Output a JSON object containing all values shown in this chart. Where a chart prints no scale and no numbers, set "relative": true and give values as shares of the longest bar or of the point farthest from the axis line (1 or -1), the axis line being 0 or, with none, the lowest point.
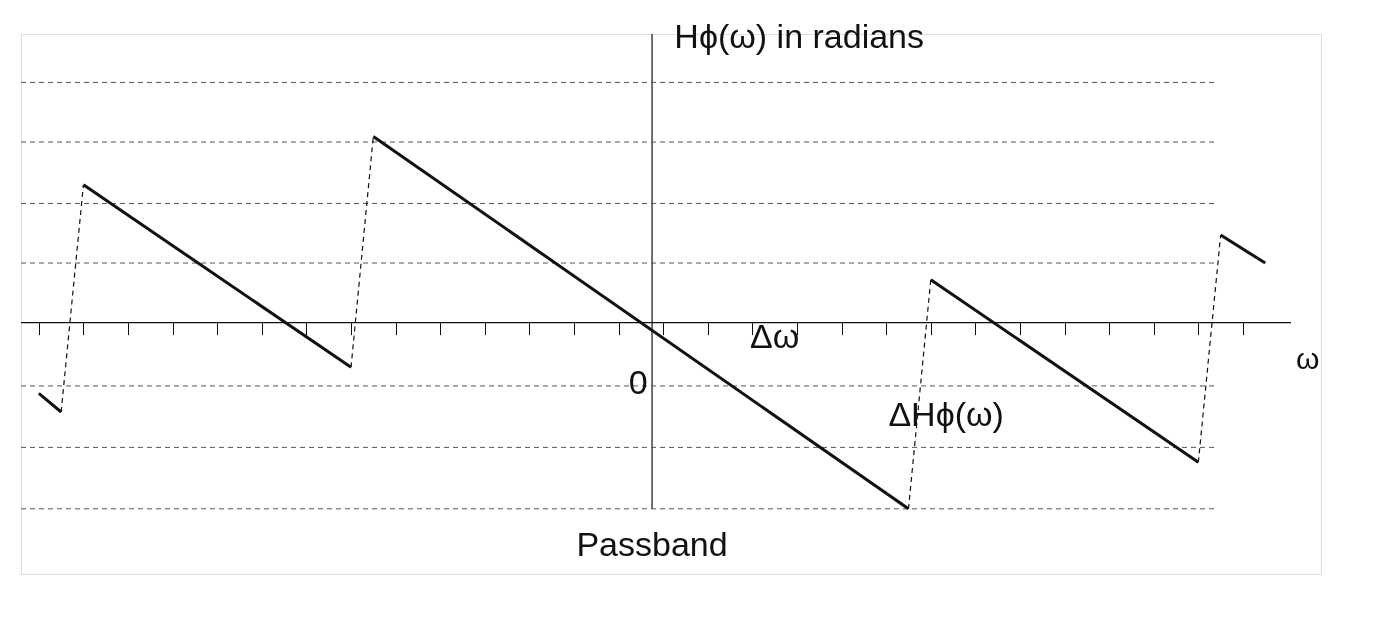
{
  "chart_data": {
    "type": "line",
    "relative": true,
    "xlabel": "ω",
    "ylabel": "Hϕ(ω) in radians",
    "categories": [
      null,
      null,
      null,
      null,
      null,
      null,
      null,
      null,
      null,
      null,
      null,
      null,
      null,
      null,
      null,
      null,
      null,
      null,
      null,
      null,
      null,
      null,
      null,
      null,
      null,
      null,
      null,
      null,
      null,
      null,
      null,
      null,
      null,
      null,
      null,
      null,
      null,
      null,
      null,
      null,
      null,
      null,
      null,
      null,
      null,
      null,
      null,
      null,
      null,
      null,
      null,
      null,
      null,
      null,
      null,
      null
    ],
    "series": [
      {
        "color": "#111111",
        "line_style": "solid",
        "values": [
          -0.38,
          -0.48,
          null,
          null,
          null,
          null,
          null,
          null,
          null,
          null,
          null,
          null,
          null,
          null,
          null,
          null,
          null,
          null,
          null,
          null,
          null,
          null,
          null,
          null,
          null,
          null,
          null,
          null,
          null,
          null,
          null,
          null,
          null,
          null,
          null,
          null,
          null,
          null,
          null,
          null,
          null,
          null,
          null,
          null,
          null,
          null,
          null,
          null,
          null,
          null,
          null,
          null,
          null,
          null,
          null,
          null
        ]
      },
      {
        "color": "#111111",
        "line_style": "dashed",
        "values": [
          null,
          -0.48,
          0.74,
          null,
          null,
          null,
          null,
          null,
          null,
          null,
          null,
          null,
          null,
          null,
          null,
          null,
          null,
          null,
          null,
          null,
          null,
          null,
          null,
          null,
          null,
          null,
          null,
          null,
          null,
          null,
          null,
          null,
          null,
          null,
          null,
          null,
          null,
          null,
          null,
          null,
          null,
          null,
          null,
          null,
          null,
          null,
          null,
          null,
          null,
          null,
          null,
          null,
          null,
          null,
          null,
          null
        ]
      },
      {
        "color": "#111111",
        "line_style": "solid",
        "values": [
          null,
          null,
          0.74,
          null,
          null,
          null,
          null,
          null,
          null,
          null,
          null,
          null,
          null,
          null,
          -0.24,
          null,
          null,
          null,
          null,
          null,
          null,
          null,
          null,
          null,
          null,
          null,
          null,
          null,
          null,
          null,
          null,
          null,
          null,
          null,
          null,
          null,
          null,
          null,
          null,
          null,
          null,
          null,
          null,
          null,
          null,
          null,
          null,
          null,
          null,
          null,
          null,
          null,
          null,
          null,
          null,
          null
        ]
      },
      {
        "color": "#111111",
        "line_style": "dashed",
        "values": [
          null,
          null,
          null,
          null,
          null,
          null,
          null,
          null,
          null,
          null,
          null,
          null,
          null,
          null,
          -0.24,
          1.0,
          null,
          null,
          null,
          null,
          null,
          null,
          null,
          null,
          null,
          null,
          null,
          null,
          null,
          null,
          null,
          null,
          null,
          null,
          null,
          null,
          null,
          null,
          null,
          null,
          null,
          null,
          null,
          null,
          null,
          null,
          null,
          null,
          null,
          null,
          null,
          null,
          null,
          null,
          null,
          null
        ]
      },
      {
        "color": "#111111",
        "line_style": "solid",
        "values": [
          null,
          null,
          null,
          null,
          null,
          null,
          null,
          null,
          null,
          null,
          null,
          null,
          null,
          null,
          null,
          1.0,
          null,
          null,
          null,
          null,
          null,
          null,
          null,
          null,
          null,
          null,
          null,
          null,
          null,
          null,
          null,
          null,
          null,
          null,
          null,
          null,
          null,
          null,
          null,
          -1.0,
          null,
          null,
          null,
          null,
          null,
          null,
          null,
          null,
          null,
          null,
          null,
          null,
          null,
          null,
          null,
          null
        ]
      },
      {
        "color": "#111111",
        "line_style": "dashed",
        "values": [
          null,
          null,
          null,
          null,
          null,
          null,
          null,
          null,
          null,
          null,
          null,
          null,
          null,
          null,
          null,
          null,
          null,
          null,
          null,
          null,
          null,
          null,
          null,
          null,
          null,
          null,
          null,
          null,
          null,
          null,
          null,
          null,
          null,
          null,
          null,
          null,
          null,
          null,
          null,
          -1.0,
          0.23,
          null,
          null,
          null,
          null,
          null,
          null,
          null,
          null,
          null,
          null,
          null,
          null,
          null,
          null,
          null
        ]
      },
      {
        "color": "#111111",
        "line_style": "solid",
        "values": [
          null,
          null,
          null,
          null,
          null,
          null,
          null,
          null,
          null,
          null,
          null,
          null,
          null,
          null,
          null,
          null,
          null,
          null,
          null,
          null,
          null,
          null,
          null,
          null,
          null,
          null,
          null,
          null,
          null,
          null,
          null,
          null,
          null,
          null,
          null,
          null,
          null,
          null,
          null,
          null,
          0.23,
          null,
          null,
          null,
          null,
          null,
          null,
          null,
          null,
          null,
          null,
          null,
          -0.75,
          null,
          null,
          null
        ]
      },
      {
        "color": "#111111",
        "line_style": "dashed",
        "values": [
          null,
          null,
          null,
          null,
          null,
          null,
          null,
          null,
          null,
          null,
          null,
          null,
          null,
          null,
          null,
          null,
          null,
          null,
          null,
          null,
          null,
          null,
          null,
          null,
          null,
          null,
          null,
          null,
          null,
          null,
          null,
          null,
          null,
          null,
          null,
          null,
          null,
          null,
          null,
          null,
          null,
          null,
          null,
          null,
          null,
          null,
          null,
          null,
          null,
          null,
          null,
          null,
          -0.75,
          0.47,
          null,
          null
        ]
      },
      {
        "color": "#111111",
        "line_style": "solid",
        "values": [
          null,
          null,
          null,
          null,
          null,
          null,
          null,
          null,
          null,
          null,
          null,
          null,
          null,
          null,
          null,
          null,
          null,
          null,
          null,
          null,
          null,
          null,
          null,
          null,
          null,
          null,
          null,
          null,
          null,
          null,
          null,
          null,
          null,
          null,
          null,
          null,
          null,
          null,
          null,
          null,
          null,
          null,
          null,
          null,
          null,
          null,
          null,
          null,
          null,
          null,
          null,
          null,
          null,
          0.47,
          null,
          0.32
        ]
      }
    ],
    "ref_lines": [
      {
        "axis": "y",
        "value": 1.29,
        "line_style": "dashed",
        "color": "#555555"
      },
      {
        "axis": "y",
        "value": 0.97,
        "line_style": "dashed",
        "color": "#555555"
      },
      {
        "axis": "y",
        "value": 0.64,
        "line_style": "dashed",
        "color": "#555555"
      },
      {
        "axis": "y",
        "value": 0.32,
        "line_style": "dashed",
        "color": "#555555"
      },
      {
        "axis": "y",
        "value": -0.34,
        "line_style": "dashed",
        "color": "#555555"
      },
      {
        "axis": "y",
        "value": -0.67,
        "line_style": "dashed",
        "color": "#555555"
      },
      {
        "axis": "y",
        "value": -1.0,
        "line_style": "dashed",
        "color": "#555555"
      }
    ],
    "annotations": [
      "0",
      "Δω",
      "ΔHϕ(ω)",
      "Passband"
    ],
    "legend": false
  }
}
